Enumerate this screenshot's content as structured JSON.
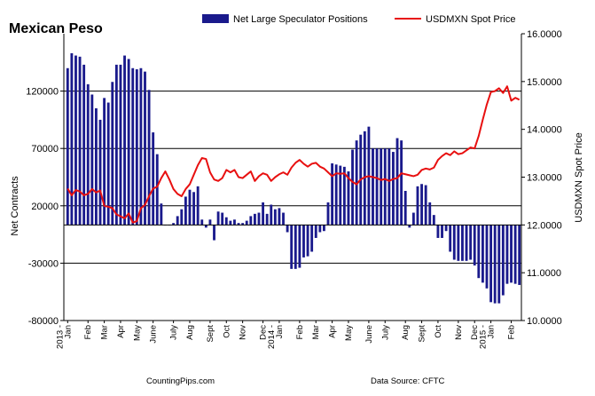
{
  "chart_data": {
    "type": "bar+line",
    "title": "Mexican Peso",
    "ylabel_left": "Net Contracts",
    "ylabel_right": "USDMXN Spot Price",
    "ylim_left": [
      -80000,
      170000
    ],
    "ylim_right": [
      10.0,
      16.0
    ],
    "yticks_left": [
      {
        "value": 120000,
        "label": "120000"
      },
      {
        "value": 70000,
        "label": "70000"
      },
      {
        "value": 20000,
        "label": "20000"
      },
      {
        "value": -30000,
        "label": "-30000"
      },
      {
        "value": -80000,
        "label": "-80000"
      }
    ],
    "yticks_right": [
      {
        "value": 16.0,
        "label": "16.0000"
      },
      {
        "value": 15.0,
        "label": "15.0000"
      },
      {
        "value": 14.0,
        "label": "14.0000"
      },
      {
        "value": 13.0,
        "label": "13.0000"
      },
      {
        "value": 12.0,
        "label": "12.0000"
      },
      {
        "value": 11.0,
        "label": "11.0000"
      },
      {
        "value": 10.0,
        "label": "10.0000"
      }
    ],
    "gridlines_left": [
      120000,
      70000,
      20000,
      -30000
    ],
    "legend": {
      "position": "top",
      "bar_label": "Net Large Speculator Positions",
      "line_label": "USDMXN Spot Price"
    },
    "colors": {
      "bar": "#1a1a8c",
      "line": "#e81010"
    },
    "x_months": [
      {
        "label": "Jan",
        "index": 0
      },
      {
        "label": "Feb",
        "index": 5
      },
      {
        "label": "Mar",
        "index": 9
      },
      {
        "label": "Apr",
        "index": 13
      },
      {
        "label": "May",
        "index": 17
      },
      {
        "label": "June",
        "index": 21
      },
      {
        "label": "July",
        "index": 26
      },
      {
        "label": "Aug",
        "index": 30
      },
      {
        "label": "Sept",
        "index": 35
      },
      {
        "label": "Oct",
        "index": 39
      },
      {
        "label": "Nov",
        "index": 43
      },
      {
        "label": "Dec",
        "index": 48
      },
      {
        "label": "Jan",
        "index": 52
      },
      {
        "label": "Feb",
        "index": 57
      },
      {
        "label": "Mar",
        "index": 61
      },
      {
        "label": "Apr",
        "index": 65
      },
      {
        "label": "May",
        "index": 69
      },
      {
        "label": "June",
        "index": 74
      },
      {
        "label": "July",
        "index": 78
      },
      {
        "label": "Aug",
        "index": 83
      },
      {
        "label": "Sept",
        "index": 87
      },
      {
        "label": "Oct",
        "index": 91
      },
      {
        "label": "Nov",
        "index": 96
      },
      {
        "label": "Dec",
        "index": 100
      },
      {
        "label": "Jan",
        "index": 104
      },
      {
        "label": "Feb",
        "index": 109
      }
    ],
    "x_years": [
      {
        "label": "2013 -",
        "index": 0
      },
      {
        "label": "2014 -",
        "index": 52
      },
      {
        "label": "2015 -",
        "index": 104
      }
    ],
    "positions": [
      140000,
      153000,
      151000,
      150000,
      143000,
      126000,
      117000,
      105000,
      95000,
      114000,
      110000,
      128000,
      143000,
      143000,
      151000,
      148000,
      140000,
      139000,
      140000,
      137000,
      121000,
      84000,
      65000,
      22000,
      3000,
      3000,
      5000,
      11000,
      17000,
      28000,
      34000,
      32000,
      37000,
      8000,
      1000,
      8000,
      -10000,
      15000,
      14000,
      10000,
      7000,
      8000,
      5000,
      5000,
      7000,
      11000,
      13000,
      14000,
      23000,
      13000,
      21000,
      17000,
      18000,
      14000,
      -3000,
      -35000,
      -35000,
      -34000,
      -25000,
      -24000,
      -20000,
      -8000,
      -3000,
      -2000,
      23000,
      57000,
      56000,
      55000,
      54000,
      50000,
      69000,
      77000,
      82000,
      85000,
      89000,
      70000,
      70000,
      70000,
      70000,
      70000,
      67000,
      79000,
      77000,
      33000,
      1000,
      14000,
      37000,
      39000,
      38000,
      23000,
      12000,
      -8000,
      -8000,
      -2000,
      -20000,
      -27000,
      -28000,
      -28000,
      -28000,
      -27000,
      -32000,
      -43000,
      -47000,
      -52000,
      -64000,
      -65000,
      -65000,
      -58000,
      -48000,
      -47000,
      -48000,
      -49000
    ],
    "spot_price": [
      12.76,
      12.62,
      12.73,
      12.7,
      12.62,
      12.65,
      12.75,
      12.68,
      12.72,
      12.4,
      12.38,
      12.35,
      12.22,
      12.18,
      12.14,
      12.24,
      12.05,
      12.08,
      12.35,
      12.42,
      12.6,
      12.76,
      12.8,
      12.98,
      13.12,
      12.95,
      12.75,
      12.65,
      12.6,
      12.75,
      12.85,
      13.05,
      13.25,
      13.4,
      13.38,
      13.1,
      12.95,
      12.92,
      12.98,
      13.15,
      13.1,
      13.15,
      13.0,
      12.98,
      13.05,
      13.12,
      12.92,
      13.02,
      13.08,
      13.05,
      12.92,
      13.0,
      13.06,
      13.1,
      13.05,
      13.2,
      13.3,
      13.36,
      13.28,
      13.22,
      13.28,
      13.3,
      13.22,
      13.18,
      13.1,
      13.02,
      13.08,
      13.07,
      13.08,
      12.98,
      12.9,
      12.85,
      12.95,
      13.0,
      13.02,
      13.0,
      12.98,
      12.94,
      12.96,
      12.92,
      12.96,
      12.98,
      13.08,
      13.06,
      13.04,
      13.02,
      13.05,
      13.15,
      13.18,
      13.16,
      13.2,
      13.36,
      13.44,
      13.5,
      13.46,
      13.54,
      13.48,
      13.5,
      13.56,
      13.62,
      13.6,
      13.86,
      14.2,
      14.52,
      14.78,
      14.8,
      14.86,
      14.76,
      14.9,
      14.6,
      14.66,
      14.62
    ],
    "footer_left": "CountingPips.com",
    "footer_right": "Data Source: CFTC"
  }
}
